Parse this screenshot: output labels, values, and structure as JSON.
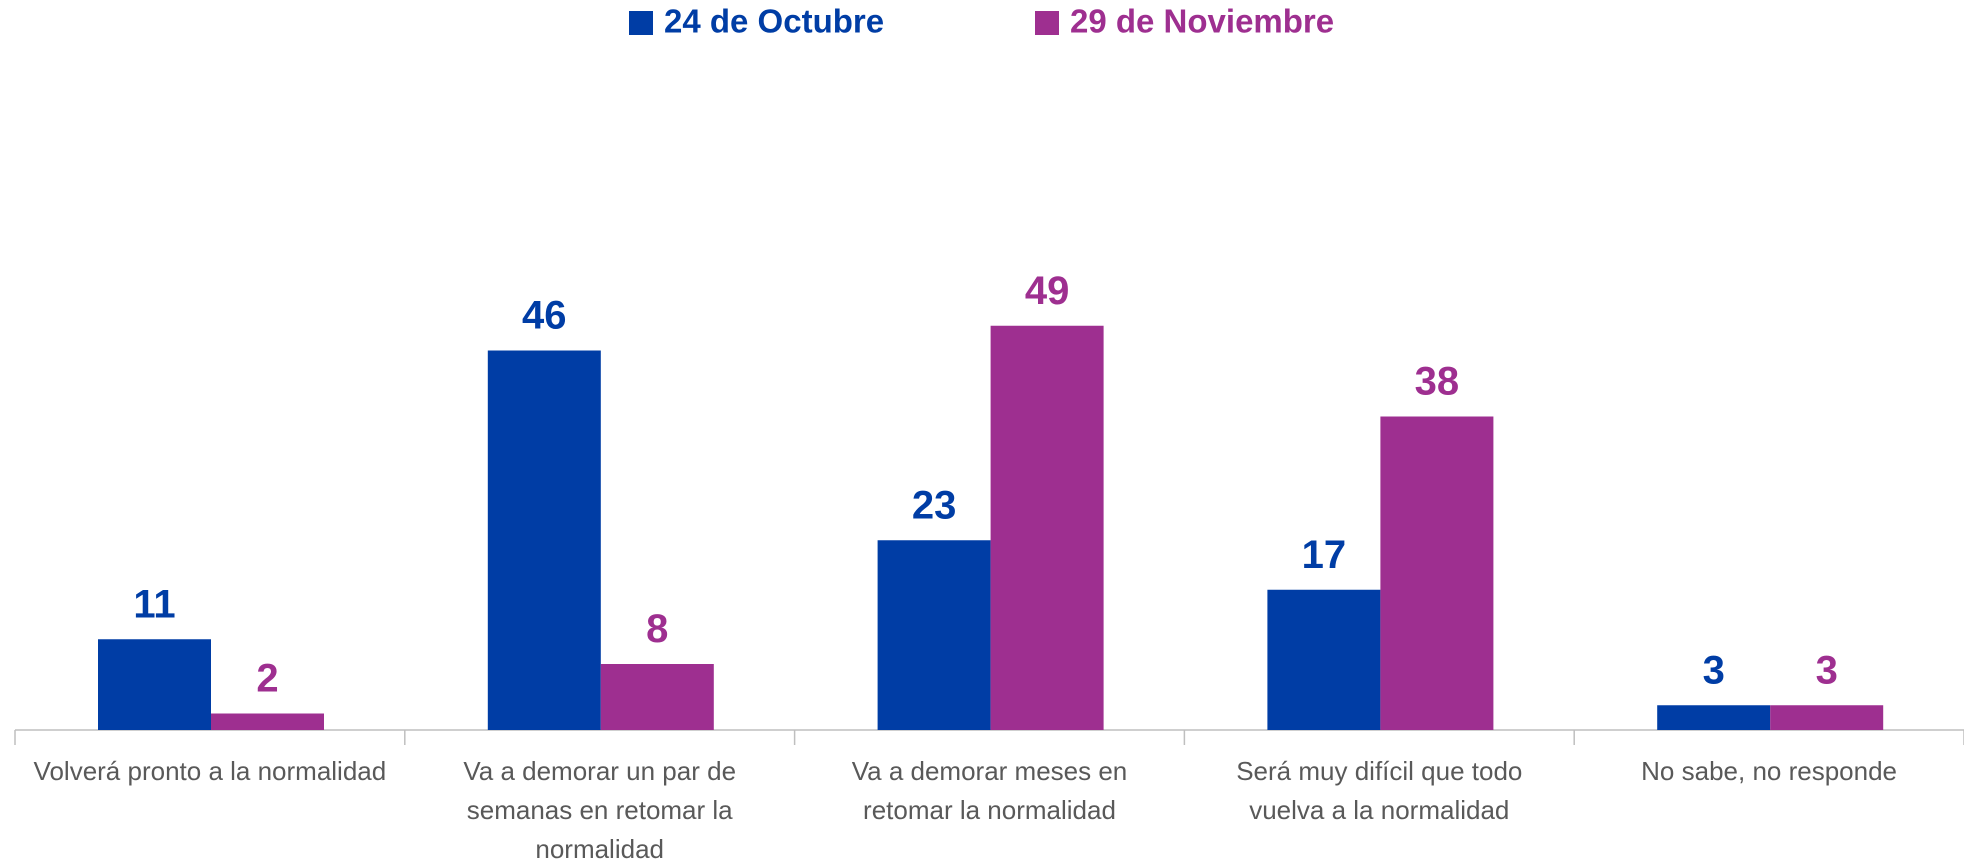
{
  "chart_data": {
    "type": "bar",
    "categories": [
      "Volverá pronto a la normalidad",
      "Va a demorar un par de semanas en retomar la normalidad",
      "Va a demorar meses en retomar la normalidad",
      "Será muy difícil que todo vuelva a la normalidad",
      "No sabe, no responde"
    ],
    "series": [
      {
        "name": "24 de Octubre",
        "color": "#003da5",
        "values": [
          11,
          46,
          23,
          17,
          3
        ]
      },
      {
        "name": "29 de Noviembre",
        "color": "#9e2f90",
        "values": [
          2,
          8,
          49,
          38,
          3
        ]
      }
    ],
    "ylim": [
      0,
      60
    ]
  }
}
